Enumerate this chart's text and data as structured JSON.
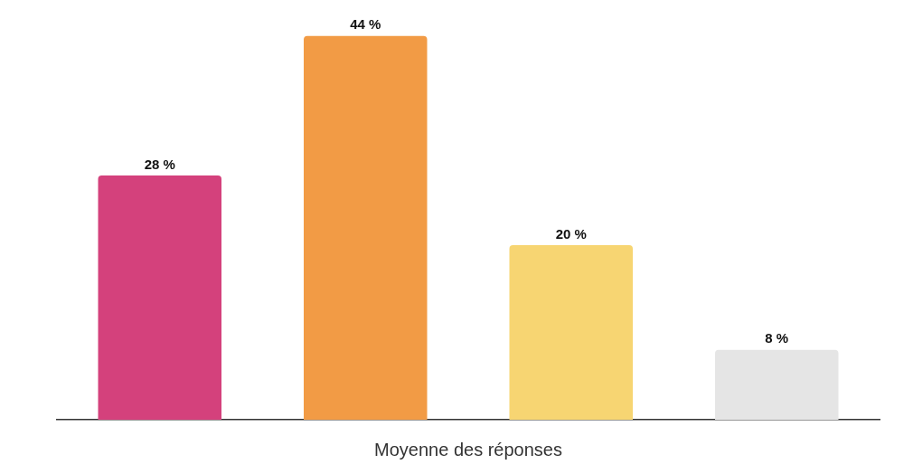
{
  "chart_data": {
    "type": "bar",
    "xlabel": "Moyenne des réponses",
    "categories": [
      null,
      null,
      null,
      null
    ],
    "values": [
      28,
      44,
      20,
      8
    ],
    "colors": [
      "#d4417c",
      "#f29b45",
      "#f7d572",
      "#e5e5e5"
    ],
    "value_labels": [
      "28 %",
      "44 %",
      "20 %",
      "8 %"
    ],
    "grid": false,
    "legend": false
  }
}
